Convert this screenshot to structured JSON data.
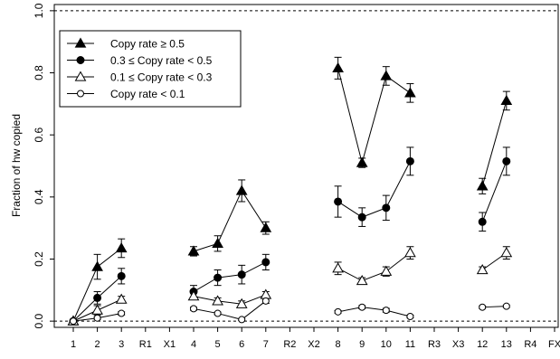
{
  "chart_data": {
    "type": "line",
    "title": "",
    "xlabel": "",
    "ylabel": "Fraction of hw copied",
    "ylim": [
      -0.02,
      1.02
    ],
    "yticks": [
      "0.0",
      "0.2",
      "0.4",
      "0.6",
      "0.8",
      "1.0"
    ],
    "ytick_values": [
      0.0,
      0.2,
      0.4,
      0.6,
      0.8,
      1.0
    ],
    "categories": [
      "1",
      "2",
      "3",
      "R1",
      "X1",
      "4",
      "5",
      "6",
      "7",
      "R2",
      "X2",
      "8",
      "9",
      "10",
      "11",
      "R3",
      "X3",
      "12",
      "13",
      "R4",
      "FX"
    ],
    "reference_lines": [
      0.0,
      1.0
    ],
    "grid": false,
    "legend_position": "top-left",
    "series": [
      {
        "name": "Copy rate ≥ 0.5",
        "marker": "filled-triangle",
        "segments": [
          [
            "1",
            "2",
            "3"
          ],
          [
            "4",
            "5",
            "6",
            "7"
          ],
          [
            "8",
            "9",
            "10",
            "11"
          ],
          [
            "12",
            "13"
          ]
        ],
        "points": [
          {
            "x": "1",
            "y": 0.0,
            "err": 0.005
          },
          {
            "x": "2",
            "y": 0.175,
            "err": 0.04
          },
          {
            "x": "3",
            "y": 0.235,
            "err": 0.03
          },
          {
            "x": "4",
            "y": 0.225,
            "err": 0.015
          },
          {
            "x": "5",
            "y": 0.25,
            "err": 0.025
          },
          {
            "x": "6",
            "y": 0.42,
            "err": 0.035
          },
          {
            "x": "7",
            "y": 0.3,
            "err": 0.02
          },
          {
            "x": "8",
            "y": 0.815,
            "err": 0.035
          },
          {
            "x": "9",
            "y": 0.51,
            "err": 0.015
          },
          {
            "x": "10",
            "y": 0.79,
            "err": 0.03
          },
          {
            "x": "11",
            "y": 0.735,
            "err": 0.03
          },
          {
            "x": "12",
            "y": 0.435,
            "err": 0.025
          },
          {
            "x": "13",
            "y": 0.71,
            "err": 0.03
          }
        ]
      },
      {
        "name": "0.3 ≤ Copy rate < 0.5",
        "marker": "filled-circle",
        "segments": [
          [
            "1",
            "2",
            "3"
          ],
          [
            "4",
            "5",
            "6",
            "7"
          ],
          [
            "8",
            "9",
            "10",
            "11"
          ],
          [
            "12",
            "13"
          ]
        ],
        "points": [
          {
            "x": "1",
            "y": 0.0,
            "err": 0.005
          },
          {
            "x": "2",
            "y": 0.075,
            "err": 0.02
          },
          {
            "x": "3",
            "y": 0.145,
            "err": 0.025
          },
          {
            "x": "4",
            "y": 0.095,
            "err": 0.02
          },
          {
            "x": "5",
            "y": 0.14,
            "err": 0.025
          },
          {
            "x": "6",
            "y": 0.15,
            "err": 0.03
          },
          {
            "x": "7",
            "y": 0.19,
            "err": 0.025
          },
          {
            "x": "8",
            "y": 0.385,
            "err": 0.05
          },
          {
            "x": "9",
            "y": 0.335,
            "err": 0.03
          },
          {
            "x": "10",
            "y": 0.365,
            "err": 0.04
          },
          {
            "x": "11",
            "y": 0.515,
            "err": 0.045
          },
          {
            "x": "12",
            "y": 0.32,
            "err": 0.03
          },
          {
            "x": "13",
            "y": 0.515,
            "err": 0.045
          }
        ]
      },
      {
        "name": "0.1 ≤ Copy rate < 0.3",
        "marker": "open-triangle",
        "segments": [
          [
            "1",
            "2",
            "3"
          ],
          [
            "4",
            "5",
            "6",
            "7"
          ],
          [
            "8",
            "9",
            "10",
            "11"
          ],
          [
            "12",
            "13"
          ]
        ],
        "points": [
          {
            "x": "1",
            "y": 0.0,
            "err": 0.005
          },
          {
            "x": "2",
            "y": 0.035,
            "err": 0.015
          },
          {
            "x": "3",
            "y": 0.07,
            "err": 0.01
          },
          {
            "x": "4",
            "y": 0.08,
            "err": 0.01
          },
          {
            "x": "5",
            "y": 0.065,
            "err": 0.01
          },
          {
            "x": "6",
            "y": 0.055,
            "err": 0.01
          },
          {
            "x": "7",
            "y": 0.085,
            "err": 0.01
          },
          {
            "x": "8",
            "y": 0.17,
            "err": 0.02
          },
          {
            "x": "9",
            "y": 0.13,
            "err": 0.01
          },
          {
            "x": "10",
            "y": 0.16,
            "err": 0.015
          },
          {
            "x": "11",
            "y": 0.22,
            "err": 0.02
          },
          {
            "x": "12",
            "y": 0.165,
            "err": 0.01
          },
          {
            "x": "13",
            "y": 0.22,
            "err": 0.02
          }
        ]
      },
      {
        "name": "Copy rate < 0.1",
        "marker": "open-circle",
        "segments": [
          [
            "1",
            "2",
            "3"
          ],
          [
            "4",
            "5",
            "6",
            "7"
          ],
          [
            "8",
            "9",
            "10",
            "11"
          ],
          [
            "12",
            "13"
          ]
        ],
        "points": [
          {
            "x": "1",
            "y": 0.0,
            "err": 0.003
          },
          {
            "x": "2",
            "y": 0.01,
            "err": 0.004
          },
          {
            "x": "3",
            "y": 0.025,
            "err": 0.005
          },
          {
            "x": "4",
            "y": 0.04,
            "err": 0.005
          },
          {
            "x": "5",
            "y": 0.025,
            "err": 0.004
          },
          {
            "x": "6",
            "y": 0.005,
            "err": 0.003
          },
          {
            "x": "7",
            "y": 0.065,
            "err": 0.008
          },
          {
            "x": "8",
            "y": 0.03,
            "err": 0.004
          },
          {
            "x": "9",
            "y": 0.045,
            "err": 0.005
          },
          {
            "x": "10",
            "y": 0.035,
            "err": 0.006
          },
          {
            "x": "11",
            "y": 0.015,
            "err": 0.004
          },
          {
            "x": "12",
            "y": 0.045,
            "err": 0.004
          },
          {
            "x": "13",
            "y": 0.048,
            "err": 0.004
          }
        ]
      }
    ]
  },
  "legend": {
    "items": [
      {
        "label": "Copy rate ≥ 0.5",
        "marker": "filled-triangle"
      },
      {
        "label": "0.3 ≤ Copy rate < 0.5",
        "marker": "filled-circle"
      },
      {
        "label": "0.1 ≤ Copy rate < 0.3",
        "marker": "open-triangle"
      },
      {
        "label": "Copy rate < 0.1",
        "marker": "open-circle"
      }
    ]
  }
}
